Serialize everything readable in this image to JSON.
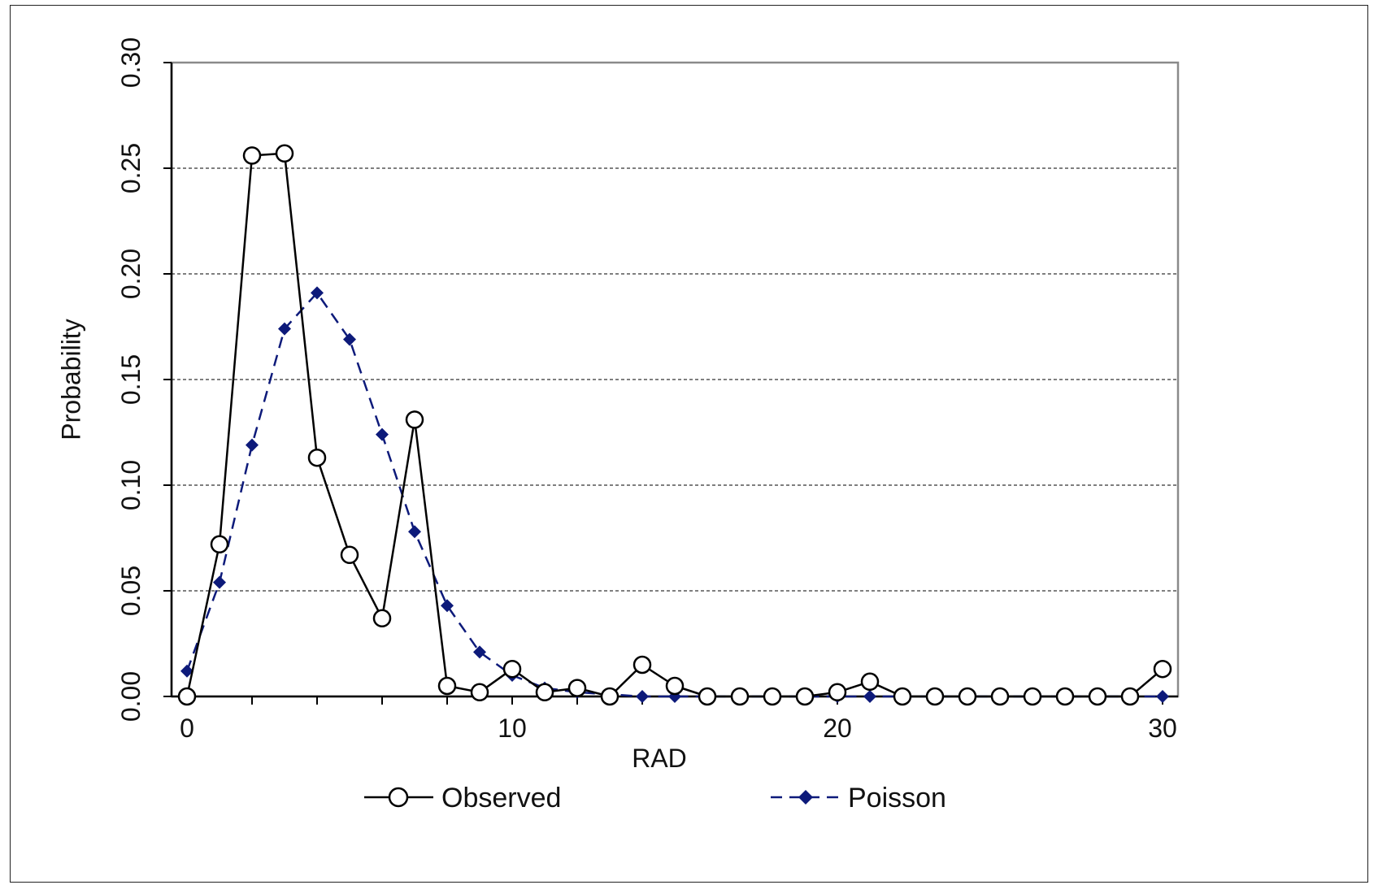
{
  "chart_data": {
    "type": "line",
    "xlabel": "RAD",
    "ylabel": "Probability",
    "xlim": [
      0,
      30
    ],
    "ylim": [
      0,
      0.3
    ],
    "x_ticks": [
      "0",
      "10",
      "20",
      "30"
    ],
    "y_ticks": [
      "0.00",
      "0.05",
      "0.10",
      "0.15",
      "0.20",
      "0.25",
      "0.30"
    ],
    "grid": "horizontal dashed",
    "legend": "bottom",
    "x": [
      0,
      1,
      2,
      3,
      4,
      5,
      6,
      7,
      8,
      9,
      10,
      11,
      12,
      13,
      14,
      15,
      16,
      17,
      18,
      19,
      20,
      21,
      22,
      23,
      24,
      25,
      26,
      27,
      28,
      29,
      30
    ],
    "series": [
      {
        "name": "Observed",
        "color": "#000000",
        "marker": "open-circle",
        "line": "solid",
        "values": [
          0.0,
          0.072,
          0.256,
          0.257,
          0.113,
          0.067,
          0.037,
          0.131,
          0.005,
          0.002,
          0.013,
          0.002,
          0.004,
          0.0,
          0.015,
          0.005,
          0.0,
          0.0,
          0.0,
          0.0,
          0.002,
          0.007,
          0.0,
          0.0,
          0.0,
          0.0,
          0.0,
          0.0,
          0.0,
          0.0,
          0.013
        ]
      },
      {
        "name": "Poisson",
        "color": "#0d1a7a",
        "marker": "diamond",
        "line": "dashed",
        "values": [
          0.012,
          0.054,
          0.119,
          0.174,
          0.191,
          0.169,
          0.124,
          0.078,
          0.043,
          0.021,
          0.01,
          0.004,
          0.002,
          0.001,
          0.0,
          0.0,
          0.0,
          0.0,
          0.0,
          0.0,
          0.0,
          0.0,
          0.0,
          0.0,
          0.0,
          0.0,
          0.0,
          0.0,
          0.0,
          0.0,
          0.0
        ]
      }
    ]
  }
}
